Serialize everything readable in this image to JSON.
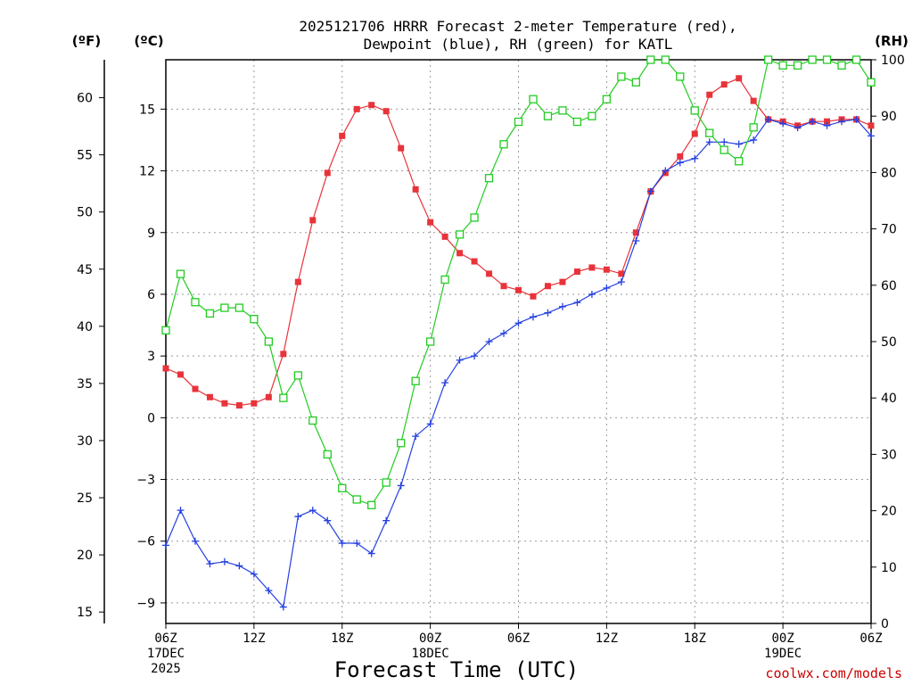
{
  "chart_data": {
    "type": "line",
    "title_line1": "2025121706 HRRR Forecast 2-meter Temperature (red),",
    "title_line2": "Dewpoint (blue), RH (green) for KATL",
    "xlabel": "Forecast Time (UTC)",
    "credit": "coolwx.com/models",
    "unit_f": "(ºF)",
    "unit_c": "(ºC)",
    "unit_rh": "(RH)",
    "x_range_hours": [
      0,
      48
    ],
    "x_ticks": [
      {
        "hour": 0,
        "line1": "06Z",
        "line2": "17DEC",
        "line3": "2025"
      },
      {
        "hour": 6,
        "line1": "12Z"
      },
      {
        "hour": 12,
        "line1": "18Z"
      },
      {
        "hour": 18,
        "line1": "00Z",
        "line2": "18DEC"
      },
      {
        "hour": 24,
        "line1": "06Z"
      },
      {
        "hour": 30,
        "line1": "12Z"
      },
      {
        "hour": 36,
        "line1": "18Z"
      },
      {
        "hour": 42,
        "line1": "00Z",
        "line2": "19DEC"
      },
      {
        "hour": 48,
        "line1": "06Z"
      }
    ],
    "celsius_range": [
      -10.0,
      17.4
    ],
    "celsius_ticks": [
      "-9",
      "-6",
      "-3",
      "0",
      "3",
      "6",
      "9",
      "12",
      "15"
    ],
    "fahrenheit_ticks": [
      "15",
      "20",
      "25",
      "30",
      "35",
      "40",
      "45",
      "50",
      "55",
      "60"
    ],
    "rh_range": [
      0,
      100
    ],
    "rh_ticks": [
      "0",
      "10",
      "20",
      "30",
      "40",
      "50",
      "60",
      "70",
      "80",
      "90",
      "100"
    ],
    "series": [
      {
        "name": "Temperature",
        "axis": "celsius",
        "color": "#e8333a",
        "marker": "filled-square",
        "values": [
          2.4,
          2.1,
          1.4,
          1.0,
          0.7,
          0.6,
          0.7,
          1.0,
          3.1,
          6.6,
          9.6,
          11.9,
          13.7,
          15.0,
          15.2,
          14.9,
          13.1,
          11.1,
          9.5,
          8.8,
          8.0,
          7.6,
          7.0,
          6.4,
          6.2,
          5.9,
          6.4,
          6.6,
          7.1,
          7.3,
          7.2,
          7.0,
          9.0,
          11.0,
          11.9,
          12.7,
          13.8,
          15.7,
          16.2,
          16.5,
          15.4,
          14.5,
          14.4,
          14.2,
          14.4,
          14.4,
          14.5,
          14.5,
          14.2
        ]
      },
      {
        "name": "Dewpoint",
        "axis": "celsius",
        "color": "#2540e0",
        "marker": "plus",
        "values": [
          -6.2,
          -4.5,
          -6.0,
          -7.1,
          -7.0,
          -7.2,
          -7.6,
          -8.4,
          -9.2,
          -4.8,
          -4.5,
          -5.0,
          -6.1,
          -6.1,
          -6.6,
          -5.0,
          -3.3,
          -0.9,
          -0.3,
          1.7,
          2.8,
          3.0,
          3.7,
          4.1,
          4.6,
          4.9,
          5.1,
          5.4,
          5.6,
          6.0,
          6.3,
          6.6,
          8.6,
          11.0,
          12.0,
          12.4,
          12.6,
          13.4,
          13.4,
          13.3,
          13.5,
          14.5,
          14.3,
          14.1,
          14.4,
          14.2,
          14.4,
          14.5,
          13.7
        ]
      },
      {
        "name": "RH",
        "axis": "rh",
        "color": "#22cc22",
        "marker": "hollow-square",
        "values": [
          52,
          62,
          57,
          55,
          56,
          56,
          54,
          50,
          40,
          44,
          36,
          30,
          24,
          22,
          21,
          25,
          32,
          43,
          50,
          61,
          69,
          72,
          79,
          85,
          89,
          93,
          90,
          91,
          89,
          90,
          93,
          97,
          96,
          100,
          100,
          97,
          91,
          87,
          84,
          82,
          88,
          100,
          99,
          99,
          100,
          100,
          99,
          100,
          96
        ]
      }
    ]
  }
}
